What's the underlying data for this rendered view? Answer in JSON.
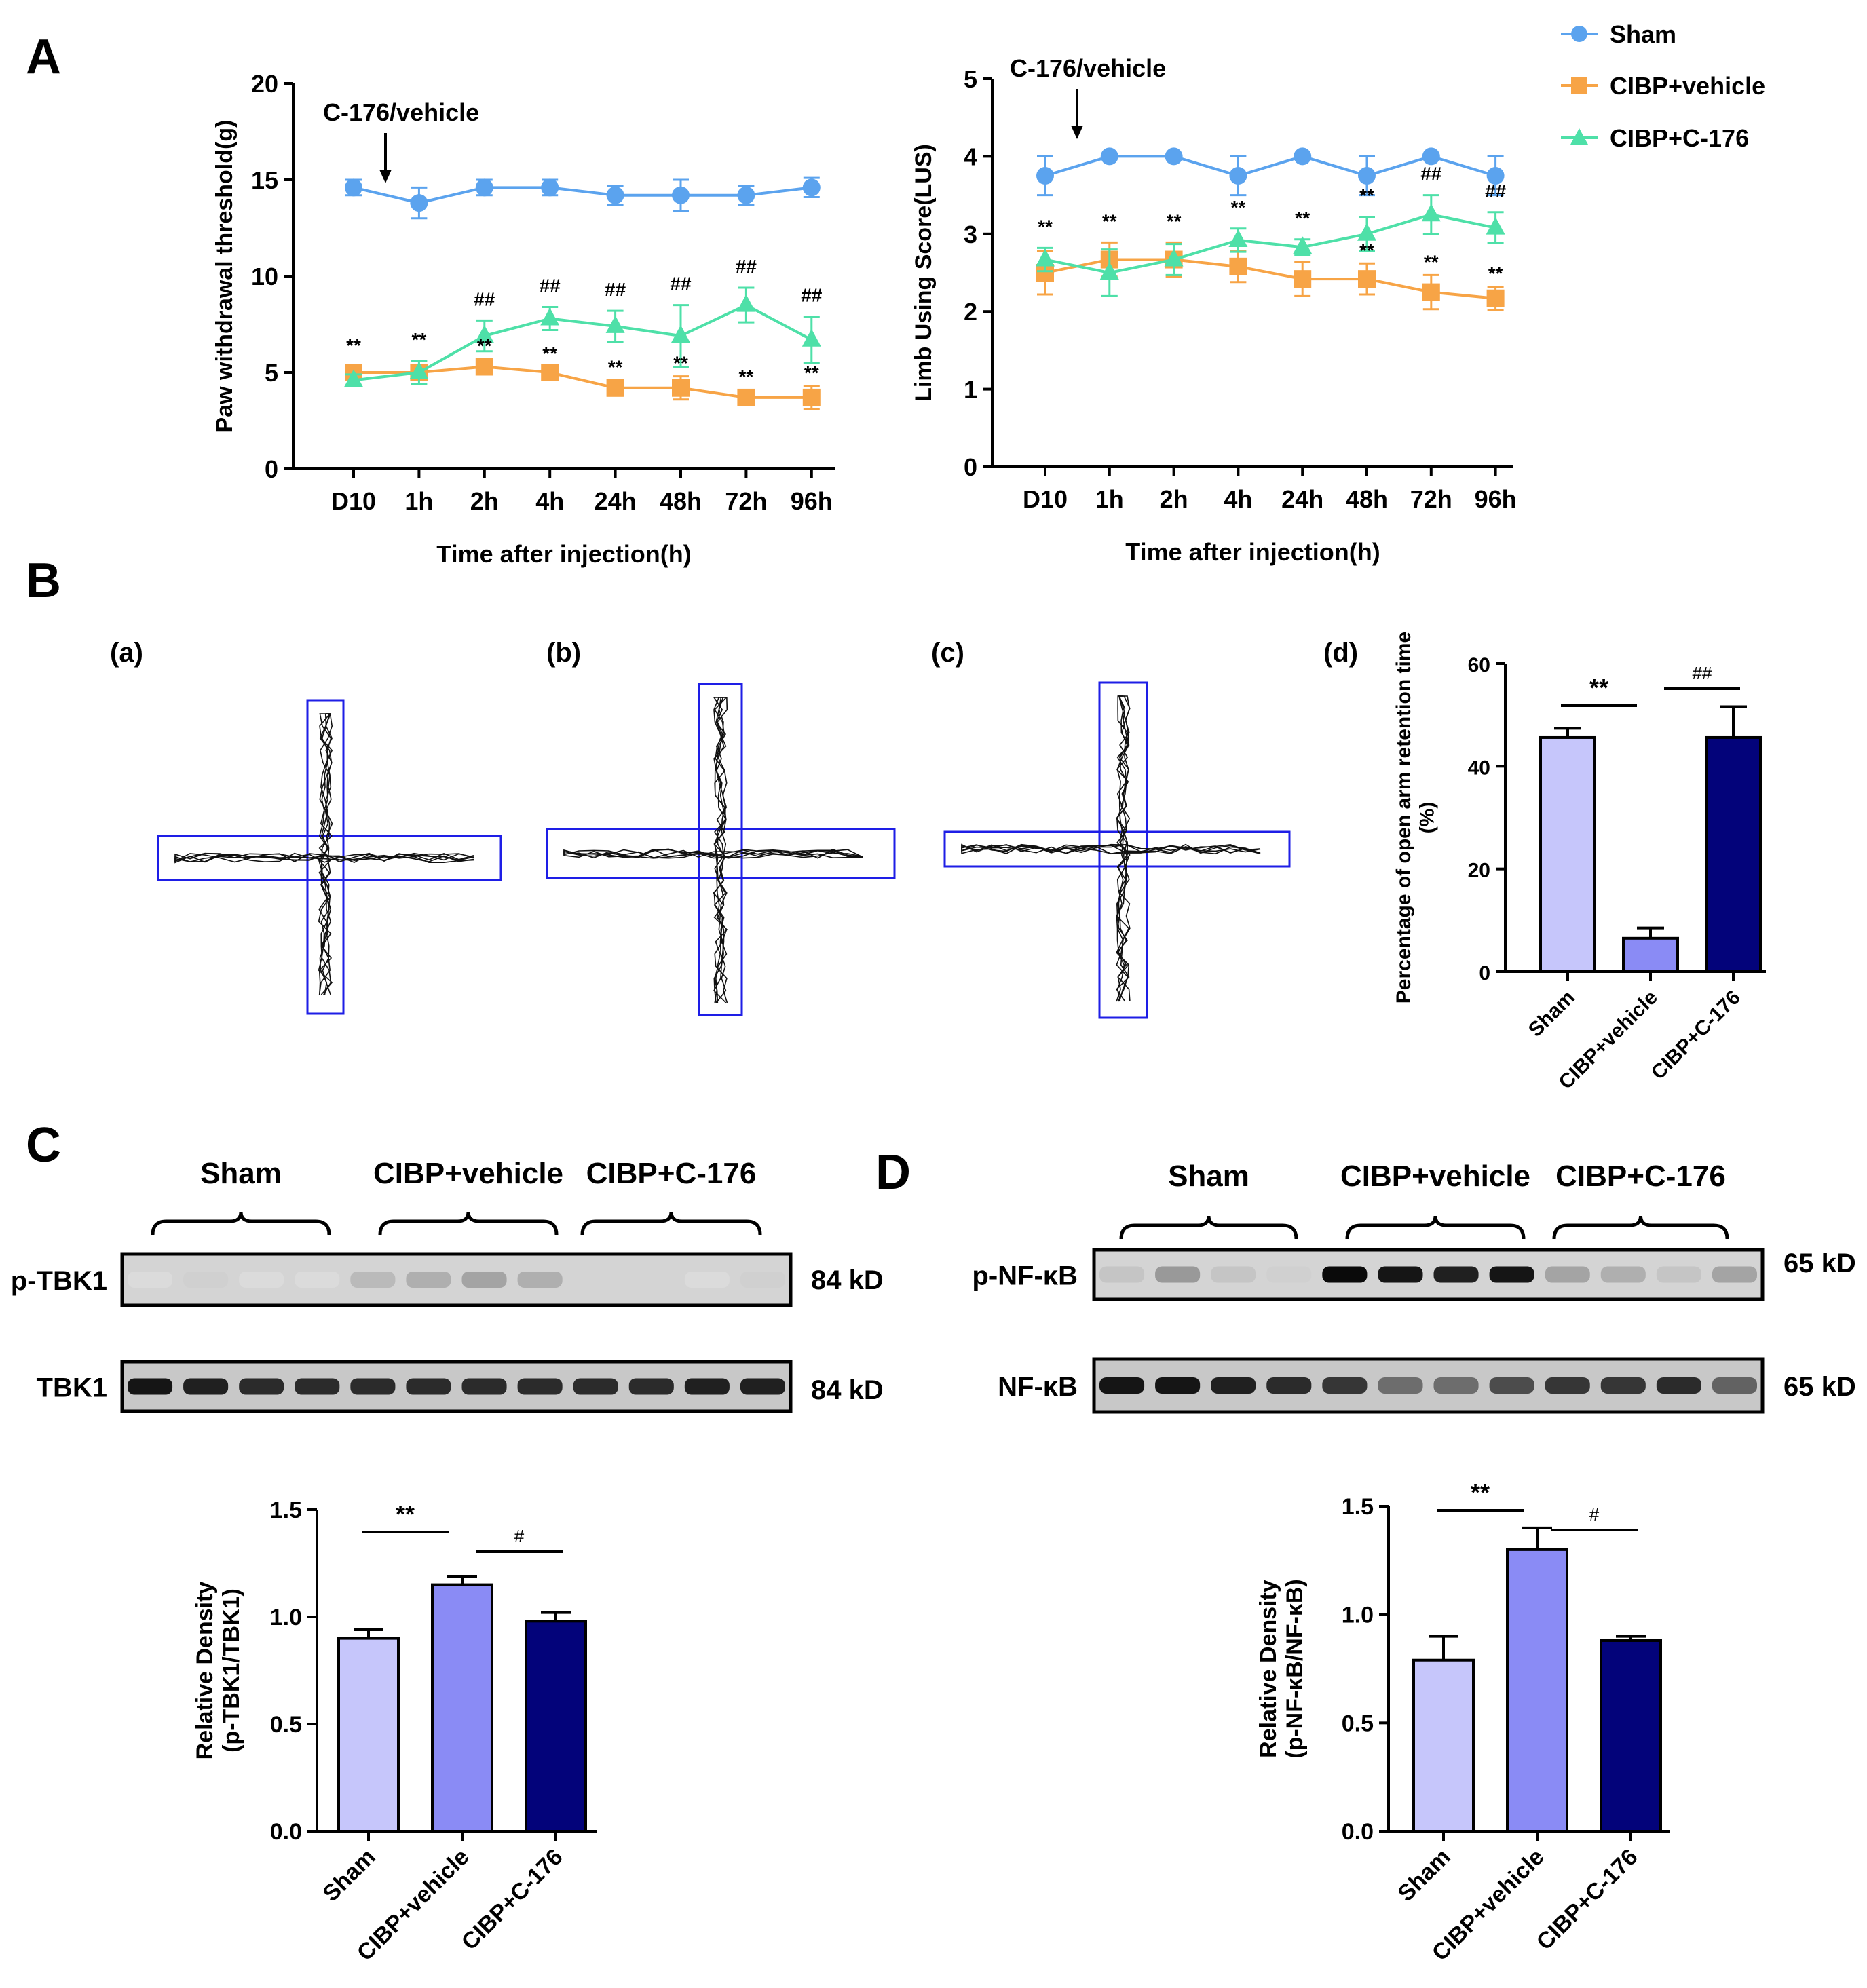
{
  "colors": {
    "sham": "#5BA3EE",
    "vehicle": "#F7A446",
    "c176": "#4EE0A8",
    "bar_sham": "#C6C6FB",
    "bar_vehicle": "#8A8BF5",
    "bar_c176": "#03037A",
    "maze_box": "#1E1EE6"
  },
  "labels": {
    "A": "A",
    "B": "B",
    "C": "C",
    "D": "D",
    "ba": "(a)",
    "bb": "(b)",
    "bc": "(c)",
    "bd": "(d)"
  },
  "legend": [
    "Sham",
    "CIBP+vehicle",
    "CIBP+C-176"
  ],
  "blot_c": {
    "groups": [
      "Sham",
      "CIBP+vehicle",
      "CIBP+C-176"
    ],
    "rows": [
      {
        "name": "p-TBK1",
        "kd": "84 kD"
      },
      {
        "name": "TBK1",
        "kd": "84 kD"
      }
    ]
  },
  "blot_d": {
    "groups": [
      "Sham",
      "CIBP+vehicle",
      "CIBP+C-176"
    ],
    "rows": [
      {
        "name": "p-NF-κB",
        "kd": "65 kD"
      },
      {
        "name": "NF-κB",
        "kd": "65 kD"
      }
    ]
  },
  "chart_data": [
    {
      "id": "A1",
      "type": "line",
      "title": "",
      "xlabel": "Time after injection(h)",
      "ylabel": "Paw withdrawal threshold(g)",
      "ylim": [
        0,
        20
      ],
      "yticks": [
        0,
        5,
        10,
        15,
        20
      ],
      "categories": [
        "D10",
        "1h",
        "2h",
        "4h",
        "24h",
        "48h",
        "72h",
        "96h"
      ],
      "annotation": "C-176/vehicle",
      "series": [
        {
          "name": "Sham",
          "values": [
            14.6,
            13.8,
            14.6,
            14.6,
            14.2,
            14.2,
            14.2,
            14.6
          ],
          "err": [
            0.4,
            0.8,
            0.4,
            0.4,
            0.5,
            0.8,
            0.5,
            0.5
          ]
        },
        {
          "name": "CIBP+vehicle",
          "values": [
            5.0,
            5.0,
            5.3,
            5.0,
            4.2,
            4.2,
            3.7,
            3.7
          ],
          "err": [
            0.3,
            0.3,
            0.4,
            0.3,
            0.4,
            0.6,
            0.4,
            0.6
          ]
        },
        {
          "name": "CIBP+C-176",
          "values": [
            4.6,
            5.0,
            6.9,
            7.8,
            7.4,
            6.9,
            8.5,
            6.7
          ],
          "err": [
            0.3,
            0.6,
            0.8,
            0.6,
            0.8,
            1.6,
            0.9,
            1.2
          ]
        }
      ],
      "marks_upper": [
        "**",
        "**",
        "##",
        "##",
        "##",
        "##",
        "##",
        "##"
      ],
      "marks_lower": [
        "",
        "",
        "**",
        "**",
        "**",
        "**",
        "**",
        "**"
      ]
    },
    {
      "id": "A2",
      "type": "line",
      "title": "",
      "xlabel": "Time after injection(h)",
      "ylabel": "Limb Using Score(LUS)",
      "ylim": [
        0,
        5
      ],
      "yticks": [
        0,
        1,
        2,
        3,
        4,
        5
      ],
      "categories": [
        "D10",
        "1h",
        "2h",
        "4h",
        "24h",
        "48h",
        "72h",
        "96h"
      ],
      "annotation": "C-176/vehicle",
      "series": [
        {
          "name": "Sham",
          "values": [
            3.75,
            4.0,
            4.0,
            3.75,
            4.0,
            3.75,
            4.0,
            3.75
          ],
          "err": [
            0.25,
            0,
            0,
            0.25,
            0,
            0.25,
            0,
            0.25
          ]
        },
        {
          "name": "CIBP+vehicle",
          "values": [
            2.5,
            2.67,
            2.67,
            2.58,
            2.42,
            2.42,
            2.25,
            2.17
          ],
          "err": [
            0.28,
            0.22,
            0.22,
            0.2,
            0.22,
            0.2,
            0.22,
            0.15
          ]
        },
        {
          "name": "CIBP+C-176",
          "values": [
            2.67,
            2.5,
            2.67,
            2.92,
            2.83,
            3.0,
            3.25,
            3.08
          ],
          "err": [
            0.15,
            0.3,
            0.2,
            0.15,
            0.1,
            0.22,
            0.25,
            0.2
          ]
        }
      ],
      "marks_upper": [
        "**",
        "**",
        "**",
        "**",
        "**",
        "**",
        "##",
        "##"
      ],
      "marks_lower": [
        "",
        "",
        "",
        "",
        "",
        "**",
        "**",
        "**"
      ]
    },
    {
      "id": "Bd",
      "type": "bar",
      "ylabel": "Percentage of open arm retention time (%)",
      "ylim": [
        0,
        60
      ],
      "yticks": [
        0,
        20,
        40,
        60
      ],
      "categories": [
        "Sham",
        "CIBP+vehicle",
        "CIBP+C-176"
      ],
      "values": [
        45.6,
        6.5,
        45.6
      ],
      "err": [
        1.8,
        2.0,
        6.0
      ],
      "sig": [
        {
          "from": 0,
          "to": 1,
          "label": "**"
        },
        {
          "from": 1,
          "to": 2,
          "label": "##"
        }
      ]
    },
    {
      "id": "Cbar",
      "type": "bar",
      "ylabel": "Relative Density (p-TBK1/TBK1)",
      "ylim": [
        0,
        1.5
      ],
      "yticks": [
        0.0,
        0.5,
        1.0,
        1.5
      ],
      "ytick_labels": [
        "0.0",
        "0.5",
        "1.0",
        "1.5"
      ],
      "categories": [
        "Sham",
        "CIBP+vehicle",
        "CIBP+C-176"
      ],
      "values": [
        0.9,
        1.15,
        0.98
      ],
      "err": [
        0.04,
        0.04,
        0.04
      ],
      "sig": [
        {
          "from": 0,
          "to": 1,
          "label": "**"
        },
        {
          "from": 1,
          "to": 2,
          "label": "#"
        }
      ]
    },
    {
      "id": "Dbar",
      "type": "bar",
      "ylabel": "Relative Density (p-NF-κB/NF-κB)",
      "ylim": [
        0,
        1.5
      ],
      "yticks": [
        0.0,
        0.5,
        1.0,
        1.5
      ],
      "ytick_labels": [
        "0.0",
        "0.5",
        "1.0",
        "1.5"
      ],
      "categories": [
        "Sham",
        "CIBP+vehicle",
        "CIBP+C-176"
      ],
      "values": [
        0.79,
        1.3,
        0.88
      ],
      "err": [
        0.11,
        0.1,
        0.02
      ],
      "sig": [
        {
          "from": 0,
          "to": 1,
          "label": "**"
        },
        {
          "from": 1,
          "to": 2,
          "label": "#"
        }
      ]
    }
  ]
}
